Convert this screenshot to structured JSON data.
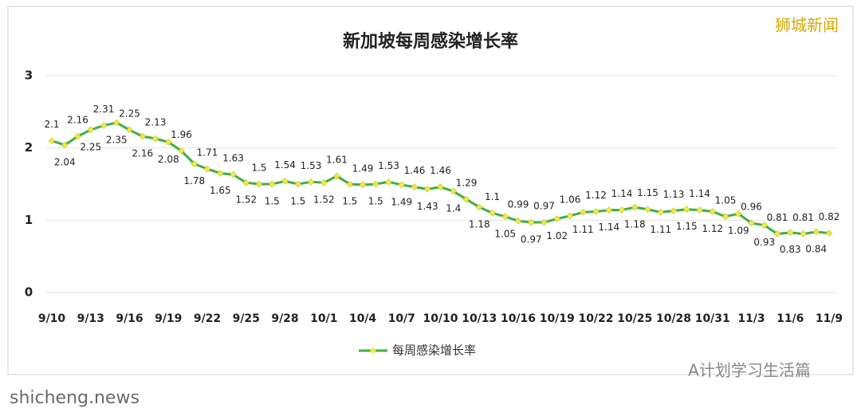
{
  "watermark_top": "狮城新闻",
  "watermark_bottom_right": "A计划学习生活篇",
  "watermark_bottom_left": "shicheng.news",
  "chart_data": {
    "type": "line",
    "title": "新加坡每周感染增长率",
    "categories": [
      "9/10",
      null,
      null,
      "9/13",
      null,
      null,
      "9/16",
      null,
      null,
      "9/19",
      null,
      null,
      "9/22",
      null,
      null,
      "9/25",
      null,
      null,
      "9/28",
      null,
      null,
      "10/1",
      null,
      null,
      "10/4",
      null,
      null,
      "10/7",
      null,
      null,
      "10/10",
      null,
      null,
      "10/13",
      null,
      null,
      "10/16",
      null,
      null,
      "10/19",
      null,
      null,
      "10/22",
      null,
      null,
      "10/25",
      null,
      null,
      "10/28",
      null,
      null,
      "10/31",
      null,
      null,
      "11/3",
      null,
      null,
      "11/6",
      null,
      null,
      "11/9"
    ],
    "series": [
      {
        "name": "每周感染增长率",
        "color": "#3cb043",
        "marker_color": "#f2ea3c",
        "values": [
          2.1,
          2.04,
          2.16,
          2.25,
          2.31,
          2.35,
          2.25,
          2.16,
          2.13,
          2.08,
          1.96,
          1.78,
          1.71,
          1.65,
          1.63,
          1.52,
          1.5,
          1.5,
          1.54,
          1.5,
          1.53,
          1.52,
          1.61,
          1.5,
          1.49,
          1.5,
          1.53,
          1.49,
          1.46,
          1.43,
          1.46,
          1.4,
          1.29,
          1.18,
          1.1,
          1.05,
          0.99,
          0.97,
          0.97,
          1.02,
          1.06,
          1.11,
          1.12,
          1.14,
          1.14,
          1.18,
          1.15,
          1.11,
          1.13,
          1.15,
          1.14,
          1.12,
          1.05,
          1.09,
          0.96,
          0.93,
          0.81,
          0.83,
          0.81,
          0.84,
          0.82
        ]
      }
    ],
    "ylim": [
      0,
      3
    ],
    "yticks": [
      0,
      1,
      2,
      3
    ],
    "grid": true,
    "legend": "bottom"
  }
}
